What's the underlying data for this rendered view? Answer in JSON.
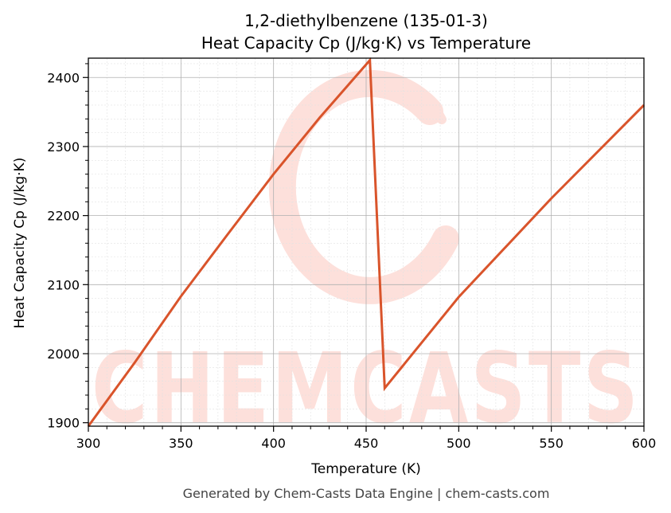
{
  "chart_data": {
    "type": "line",
    "title": "1,2-diethylbenzene (135-01-3)",
    "subtitle": "Heat Capacity Cp (J/kg·K) vs Temperature",
    "xlabel": "Temperature (K)",
    "ylabel": "Heat Capacity Cp (J/kg·K)",
    "xlim": [
      300,
      600
    ],
    "ylim": [
      1895,
      2428
    ],
    "x_ticks": [
      300,
      350,
      400,
      450,
      500,
      550,
      600
    ],
    "y_ticks": [
      1900,
      2000,
      2100,
      2200,
      2300,
      2400
    ],
    "grid": true,
    "legend": "none",
    "series": [
      {
        "color": "#d9542b",
        "points": [
          [
            300,
            1895
          ],
          [
            325,
            1987
          ],
          [
            350,
            2083
          ],
          [
            375,
            2172
          ],
          [
            400,
            2260
          ],
          [
            425,
            2342
          ],
          [
            452,
            2425
          ],
          [
            460,
            1950
          ],
          [
            500,
            2082
          ],
          [
            550,
            2225
          ],
          [
            600,
            2360
          ]
        ]
      }
    ]
  },
  "watermark": {
    "text": "CHEMCASTS",
    "color": "#fde0db"
  },
  "footer": "Generated by Chem-Casts Data Engine | chem-casts.com"
}
